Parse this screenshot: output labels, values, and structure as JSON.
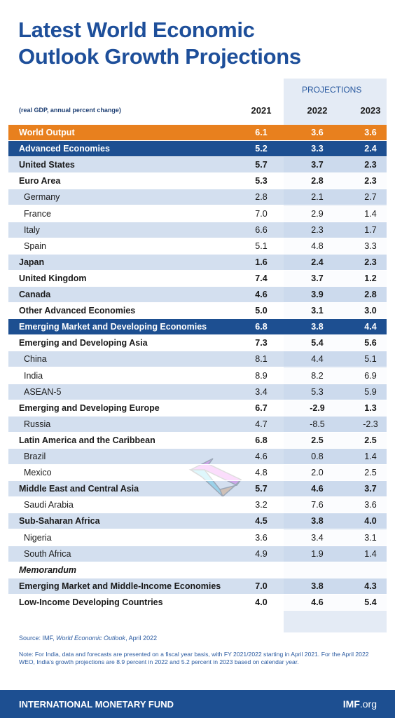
{
  "header": {
    "title_lines": [
      "Latest World Economic",
      "Outlook Growth Projections"
    ],
    "projections_label": "PROJECTIONS",
    "unit_note": "(real GDP, annual percent change)"
  },
  "table": {
    "columns": [
      "2021",
      "2022",
      "2023"
    ],
    "rows": [
      {
        "label": "World Output",
        "values": [
          "6.1",
          "3.6",
          "3.6"
        ],
        "style": "orange"
      },
      {
        "label": "Advanced Economies",
        "values": [
          "5.2",
          "3.3",
          "2.4"
        ],
        "style": "navy"
      },
      {
        "label": "United States",
        "values": [
          "5.7",
          "3.7",
          "2.3"
        ],
        "style": "bold"
      },
      {
        "label": "Euro Area",
        "values": [
          "5.3",
          "2.8",
          "2.3"
        ],
        "style": "bold"
      },
      {
        "label": "Germany",
        "values": [
          "2.8",
          "2.1",
          "2.7"
        ],
        "style": "indent"
      },
      {
        "label": "France",
        "values": [
          "7.0",
          "2.9",
          "1.4"
        ],
        "style": "indent"
      },
      {
        "label": "Italy",
        "values": [
          "6.6",
          "2.3",
          "1.7"
        ],
        "style": "indent"
      },
      {
        "label": "Spain",
        "values": [
          "5.1",
          "4.8",
          "3.3"
        ],
        "style": "indent"
      },
      {
        "label": "Japan",
        "values": [
          "1.6",
          "2.4",
          "2.3"
        ],
        "style": "bold"
      },
      {
        "label": "United Kingdom",
        "values": [
          "7.4",
          "3.7",
          "1.2"
        ],
        "style": "bold"
      },
      {
        "label": "Canada",
        "values": [
          "4.6",
          "3.9",
          "2.8"
        ],
        "style": "bold"
      },
      {
        "label": "Other Advanced Economies",
        "values": [
          "5.0",
          "3.1",
          "3.0"
        ],
        "style": "bold"
      },
      {
        "label": "Emerging Market and Developing Economies",
        "values": [
          "6.8",
          "3.8",
          "4.4"
        ],
        "style": "navy"
      },
      {
        "label": "Emerging and Developing Asia",
        "values": [
          "7.3",
          "5.4",
          "5.6"
        ],
        "style": "bold"
      },
      {
        "label": "China",
        "values": [
          "8.1",
          "4.4",
          "5.1"
        ],
        "style": "indent"
      },
      {
        "label": "India",
        "values": [
          "8.9",
          "8.2",
          "6.9"
        ],
        "style": "indent"
      },
      {
        "label": "ASEAN-5",
        "values": [
          "3.4",
          "5.3",
          "5.9"
        ],
        "style": "indent"
      },
      {
        "label": "Emerging and Developing Europe",
        "values": [
          "6.7",
          "-2.9",
          "1.3"
        ],
        "style": "bold"
      },
      {
        "label": "Russia",
        "values": [
          "4.7",
          "-8.5",
          "-2.3"
        ],
        "style": "indent"
      },
      {
        "label": "Latin America and the Caribbean",
        "values": [
          "6.8",
          "2.5",
          "2.5"
        ],
        "style": "bold"
      },
      {
        "label": "Brazil",
        "values": [
          "4.6",
          "0.8",
          "1.4"
        ],
        "style": "indent"
      },
      {
        "label": "Mexico",
        "values": [
          "4.8",
          "2.0",
          "2.5"
        ],
        "style": "indent"
      },
      {
        "label": "Middle East and Central Asia",
        "values": [
          "5.7",
          "4.6",
          "3.7"
        ],
        "style": "bold"
      },
      {
        "label": "Saudi Arabia",
        "values": [
          "3.2",
          "7.6",
          "3.6"
        ],
        "style": "indent"
      },
      {
        "label": "Sub-Saharan Africa",
        "values": [
          "4.5",
          "3.8",
          "4.0"
        ],
        "style": "bold"
      },
      {
        "label": "Nigeria",
        "values": [
          "3.6",
          "3.4",
          "3.1"
        ],
        "style": "indent"
      },
      {
        "label": "South Africa",
        "values": [
          "4.9",
          "1.9",
          "1.4"
        ],
        "style": "indent"
      },
      {
        "label": "Memorandum",
        "values": [],
        "style": "italic"
      },
      {
        "label": "Emerging Market and Middle-Income Economies",
        "values": [
          "7.0",
          "3.8",
          "4.3"
        ],
        "style": "bold"
      },
      {
        "label": "Low-Income Developing Countries",
        "values": [
          "4.0",
          "4.6",
          "5.4"
        ],
        "style": "bold"
      }
    ]
  },
  "source": {
    "prefix": "Source: IMF, ",
    "italic": "World Economic Outlook",
    "suffix": ", April 2022"
  },
  "note": "Note: For India, data and forecasts are presented on a fiscal year basis, with FY 2021/2022 starting in April 2021. For the April 2022 WEO, India's growth projections are 8.9 percent in 2022 and 5.2 percent in 2023 based on calendar year.",
  "footer": {
    "org": "INTERNATIONAL MONETARY FUND",
    "site_bold": "IMF",
    "site_light": ".org"
  }
}
